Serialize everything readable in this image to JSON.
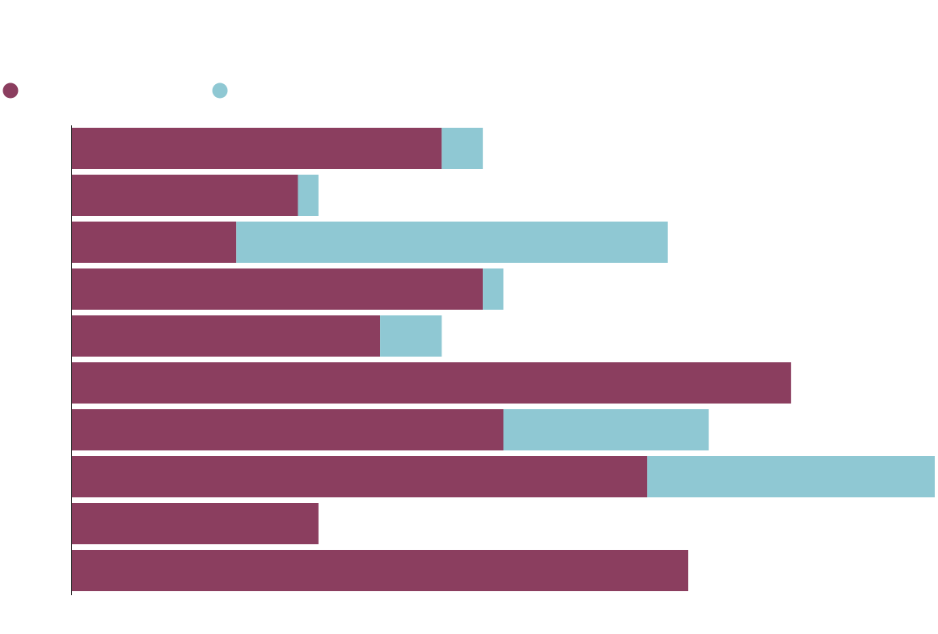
{
  "chart_data": {
    "type": "bar",
    "orientation": "horizontal",
    "stacked": true,
    "title": "",
    "xlabel": "",
    "ylabel": "",
    "xlim": [
      0,
      84
    ],
    "grid": false,
    "legend": "top-left",
    "categories": [
      "",
      "",
      "",
      "",
      "",
      "",
      "",
      "",
      "",
      ""
    ],
    "series": [
      {
        "color": "#8b3e5f",
        "values": [
          36,
          22,
          16,
          40,
          30,
          70,
          42,
          56,
          24,
          60
        ]
      },
      {
        "color": "#8fc8d3",
        "values": [
          4,
          2,
          42,
          2,
          6,
          0,
          20,
          28,
          0,
          0
        ]
      }
    ]
  }
}
